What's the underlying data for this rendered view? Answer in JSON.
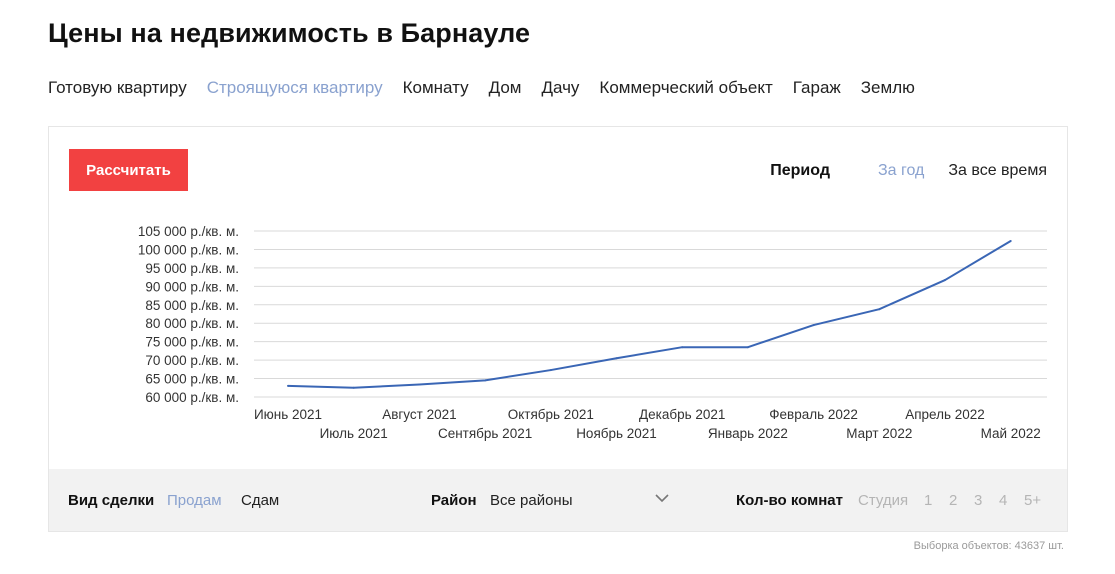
{
  "page": {
    "title": "Цены на недвижимость в Барнауле"
  },
  "property_types": [
    {
      "label": "Готовую квартиру",
      "active": false
    },
    {
      "label": "Строящуюся квартиру",
      "active": true
    },
    {
      "label": "Комнату",
      "active": false
    },
    {
      "label": "Дом",
      "active": false
    },
    {
      "label": "Дачу",
      "active": false
    },
    {
      "label": "Коммерческий объект",
      "active": false
    },
    {
      "label": "Гараж",
      "active": false
    },
    {
      "label": "Землю",
      "active": false
    }
  ],
  "calc_button": {
    "label": "Рассчитать"
  },
  "period": {
    "label": "Период",
    "options": [
      {
        "label": "За год",
        "active": true
      },
      {
        "label": "За все время",
        "active": false
      }
    ]
  },
  "colors": {
    "accent": "#f24141",
    "active_link": "#8aa2cf",
    "line": "#3a66b5",
    "grid": "#d9d9d9"
  },
  "chart_data": {
    "type": "line",
    "categories": [
      "Июнь 2021",
      "Июль 2021",
      "Август 2021",
      "Сентябрь 2021",
      "Октябрь 2021",
      "Ноябрь 2021",
      "Декабрь 2021",
      "Январь 2022",
      "Февраль 2022",
      "Март 2022",
      "Апрель 2022",
      "Май 2022"
    ],
    "values": [
      63000,
      62500,
      63400,
      64500,
      67300,
      70500,
      73500,
      73500,
      79500,
      83800,
      91700,
      102300
    ],
    "ytick_values": [
      60000,
      65000,
      70000,
      75000,
      80000,
      85000,
      90000,
      95000,
      100000,
      105000
    ],
    "ytick_labels": [
      "60 000 р./кв. м.",
      "65 000 р./кв. м.",
      "70 000 р./кв. м.",
      "75 000 р./кв. м.",
      "80 000 р./кв. м.",
      "85 000 р./кв. м.",
      "90 000 р./кв. м.",
      "95 000 р./кв. м.",
      "100 000 р./кв. м.",
      "105 000 р./кв. м."
    ],
    "ylim": [
      60000,
      105000
    ],
    "grid": true,
    "title": "",
    "xlabel": "",
    "ylabel": ""
  },
  "filters": {
    "deal_type": {
      "label": "Вид сделки",
      "options": [
        {
          "label": "Продам",
          "active": true
        },
        {
          "label": "Сдам",
          "active": false
        }
      ]
    },
    "district": {
      "label": "Район",
      "value": "Все районы"
    },
    "rooms": {
      "label": "Кол-во комнат",
      "options": [
        "Студия",
        "1",
        "2",
        "3",
        "4",
        "5+"
      ]
    }
  },
  "footer": {
    "count_text": "Выборка объектов: 43637 шт."
  }
}
